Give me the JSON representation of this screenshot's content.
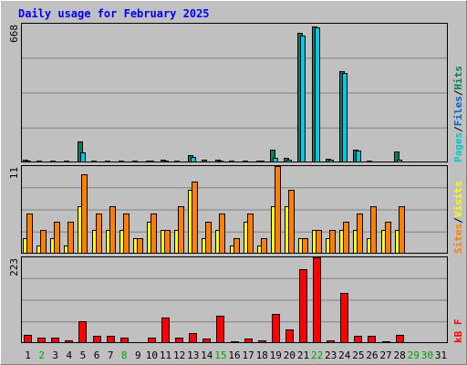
{
  "chart_data": {
    "type": "bar",
    "title": "Daily usage for February 2025",
    "categories": [
      "1",
      "2",
      "3",
      "4",
      "5",
      "6",
      "7",
      "8",
      "9",
      "10",
      "11",
      "12",
      "13",
      "14",
      "15",
      "16",
      "17",
      "18",
      "19",
      "20",
      "21",
      "22",
      "23",
      "24",
      "25",
      "26",
      "27",
      "28",
      "29",
      "30",
      "31"
    ],
    "weekend_days": [
      2,
      8,
      15,
      22,
      29,
      30
    ],
    "top_panel": {
      "scale_max": 668,
      "scale_label": "668",
      "legend": [
        {
          "name": "Pages",
          "color": "#00c8c8"
        },
        {
          "name": "Files",
          "color": "#0064c8"
        },
        {
          "name": "Hits",
          "color": "#00805c"
        }
      ],
      "series": [
        {
          "name": "Hits",
          "color": "#008060",
          "values": [
            11,
            7,
            7,
            7,
            103,
            9,
            9,
            7,
            7,
            9,
            13,
            9,
            33,
            13,
            15,
            9,
            9,
            9,
            60,
            20,
            625,
            656,
            17,
            441,
            61,
            9,
            5,
            53,
            0,
            0,
            0
          ]
        },
        {
          "name": "Files",
          "color": "#00c8e8",
          "values": [
            7,
            5,
            5,
            5,
            47,
            5,
            5,
            5,
            5,
            7,
            7,
            5,
            25,
            5,
            9,
            5,
            5,
            7,
            20,
            13,
            611,
            652,
            13,
            431,
            57,
            5,
            3,
            13,
            0,
            0,
            0
          ]
        },
        {
          "name": "Pages",
          "color": "#00c8e8",
          "values": [
            2,
            1,
            1,
            1,
            5,
            1,
            1,
            1,
            1,
            1,
            2,
            1,
            3,
            1,
            2,
            1,
            1,
            1,
            3,
            2,
            5,
            6,
            1,
            5,
            3,
            1,
            1,
            2,
            0,
            0,
            0
          ]
        }
      ]
    },
    "middle_panel": {
      "scale_max": 11,
      "scale_label": "11",
      "legend": [
        {
          "name": "Sites",
          "color": "#ff8000"
        },
        {
          "name": "Visits",
          "color": "#ffff00"
        }
      ],
      "series": [
        {
          "name": "Visits",
          "color": "#ffff00",
          "values": [
            2,
            1,
            2,
            1,
            6,
            3,
            3,
            3,
            2,
            4,
            3,
            3,
            8,
            2,
            3,
            1,
            4,
            1,
            6,
            6,
            2,
            3,
            2,
            3,
            3,
            2,
            3,
            3,
            0,
            0,
            0
          ]
        },
        {
          "name": "Sites",
          "color": "#ff8000",
          "values": [
            5,
            3,
            4,
            4,
            10,
            5,
            6,
            5,
            2,
            5,
            3,
            6,
            9,
            4,
            5,
            2,
            5,
            2,
            11,
            8,
            2,
            3,
            3,
            4,
            5,
            6,
            4,
            6,
            0,
            0,
            0
          ]
        }
      ]
    },
    "bottom_panel": {
      "scale_max": 223,
      "scale_label": "223",
      "legend": [
        {
          "name": "kB F",
          "color": "#ff0000"
        }
      ],
      "series": [
        {
          "name": "kB F",
          "color": "#ff0000",
          "values": [
            22,
            14,
            14,
            7,
            56,
            18,
            18,
            15,
            3,
            15,
            66,
            14,
            25,
            11,
            71,
            4,
            11,
            7,
            75,
            36,
            193,
            223,
            8,
            130,
            19,
            18,
            5,
            22,
            0,
            0,
            0
          ]
        }
      ]
    }
  },
  "colors": {
    "background": "#c0c0c0",
    "plot_background": "#c0c0c0",
    "title": "#0000ff",
    "weekday_label": "#000000",
    "weekend_label": "#00a000",
    "gridline": "#808080"
  }
}
